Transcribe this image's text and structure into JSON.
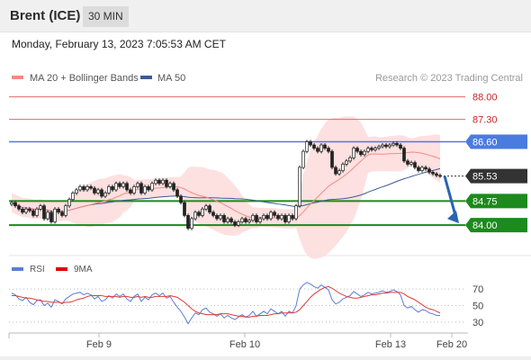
{
  "header": {
    "instrument": "Brent (ICE)",
    "interval": "30 MIN"
  },
  "datetime": "Monday, February 13, 2023 7:05:53 AM CET",
  "legend": {
    "items": [
      {
        "label": "MA 20 + Bollinger Bands",
        "color": "#f28b82"
      },
      {
        "label": "MA 50",
        "color": "#3d5a99"
      }
    ],
    "credit": "Research © 2023 Trading Central"
  },
  "rsi_legend": {
    "items": [
      {
        "label": "RSI",
        "color": "#5b7fd6"
      },
      {
        "label": "9MA",
        "color": "#e00000"
      }
    ]
  },
  "colors": {
    "up_candle": "#ffffff",
    "down_candle": "#222222",
    "band_fill": "#fde0e0",
    "ma20": "#f28b82",
    "ma50": "#3d5a99",
    "resistance": "#e26a6a",
    "pivot": "#4a7be0",
    "support": "#1c8a1c",
    "last_price": "#333333",
    "arrow": "#2a63b4"
  },
  "chart_data": [
    {
      "type": "candlestick",
      "title": "Brent (ICE) 30 MIN",
      "ylim": [
        83.3,
        88.3
      ],
      "x_ticks": [
        "Feb 9",
        "Feb 10",
        "Feb 13",
        "Feb 20"
      ],
      "price_levels": [
        {
          "value": 88.0,
          "label": "88.00",
          "kind": "resistance"
        },
        {
          "value": 87.3,
          "label": "87.30",
          "kind": "resistance"
        },
        {
          "value": 86.6,
          "label": "86.60",
          "kind": "pivot"
        },
        {
          "value": 85.53,
          "label": "85.53",
          "kind": "last"
        },
        {
          "value": 84.75,
          "label": "84.75",
          "kind": "support"
        },
        {
          "value": 84.0,
          "label": "84.00",
          "kind": "support"
        }
      ],
      "forecast": {
        "from": 85.53,
        "to": 84.0,
        "direction": "down"
      },
      "closes": [
        84.7,
        84.6,
        84.5,
        84.4,
        84.5,
        84.45,
        84.3,
        84.5,
        84.6,
        84.2,
        84.4,
        84.1,
        84.5,
        84.4,
        84.3,
        84.6,
        84.8,
        85.0,
        85.1,
        85.2,
        85.1,
        85.2,
        85.15,
        85.0,
        85.1,
        84.9,
        85.0,
        85.2,
        85.1,
        85.3,
        85.2,
        85.3,
        85.1,
        85.0,
        85.2,
        85.3,
        85.0,
        85.2,
        85.1,
        85.3,
        85.4,
        85.3,
        85.4,
        85.2,
        85.3,
        85.1,
        84.9,
        84.7,
        84.3,
        83.9,
        84.2,
        84.4,
        84.3,
        84.5,
        84.6,
        84.4,
        84.3,
        84.2,
        84.3,
        84.1,
        84.2,
        84.1,
        84.0,
        84.1,
        84.2,
        84.1,
        84.15,
        84.3,
        84.1,
        84.2,
        84.3,
        84.2,
        84.4,
        84.3,
        84.2,
        84.3,
        84.1,
        84.3,
        84.2,
        84.6,
        85.8,
        86.3,
        86.6,
        86.5,
        86.4,
        86.3,
        86.5,
        86.4,
        86.3,
        85.8,
        85.6,
        85.7,
        85.9,
        86.0,
        86.1,
        86.4,
        86.3,
        86.2,
        86.3,
        86.4,
        86.35,
        86.4,
        86.45,
        86.5,
        86.45,
        86.5,
        86.55,
        86.5,
        86.4,
        86.0,
        85.9,
        85.95,
        85.8,
        85.7,
        85.8,
        85.75,
        85.65,
        85.6,
        85.55,
        85.53
      ]
    },
    {
      "type": "line",
      "title": "RSI",
      "ylim": [
        20,
        80
      ],
      "y_ticks": [
        30,
        50,
        70
      ],
      "series": [
        {
          "name": "RSI",
          "values": [
            65,
            63,
            58,
            56,
            60,
            54,
            51,
            56,
            57,
            50,
            53,
            48,
            57,
            55,
            52,
            58,
            61,
            64,
            65,
            66,
            63,
            65,
            63,
            58,
            61,
            55,
            57,
            62,
            59,
            64,
            61,
            64,
            58,
            55,
            61,
            64,
            55,
            60,
            57,
            63,
            65,
            62,
            65,
            59,
            61,
            54,
            48,
            43,
            36,
            28,
            35,
            41,
            39,
            45,
            47,
            42,
            40,
            37,
            40,
            35,
            38,
            35,
            33,
            36,
            39,
            36,
            38,
            43,
            37,
            40,
            43,
            40,
            46,
            43,
            40,
            43,
            37,
            43,
            41,
            50,
            70,
            75,
            78,
            76,
            73,
            71,
            75,
            72,
            69,
            57,
            52,
            54,
            58,
            60,
            62,
            67,
            64,
            61,
            63,
            66,
            64,
            65,
            66,
            68,
            66,
            67,
            69,
            67,
            63,
            50,
            47,
            49,
            45,
            42,
            45,
            44,
            41,
            40,
            38,
            38
          ]
        },
        {
          "name": "9MA",
          "values": [
            62,
            62,
            61,
            60,
            59,
            59,
            58,
            57,
            56,
            55,
            55,
            54,
            54,
            54,
            53,
            54,
            54,
            55,
            57,
            58,
            59,
            61,
            62,
            62,
            62,
            62,
            61,
            61,
            61,
            61,
            60,
            61,
            61,
            60,
            60,
            61,
            60,
            61,
            60,
            60,
            61,
            61,
            61,
            61,
            62,
            61,
            60,
            57,
            54,
            50,
            46,
            43,
            41,
            40,
            39,
            39,
            39,
            39,
            40,
            40,
            40,
            39,
            38,
            37,
            37,
            36,
            36,
            37,
            37,
            38,
            38,
            38,
            39,
            40,
            40,
            41,
            41,
            41,
            41,
            42,
            45,
            50,
            55,
            60,
            64,
            67,
            70,
            72,
            73,
            71,
            68,
            65,
            63,
            61,
            60,
            59,
            59,
            60,
            61,
            62,
            63,
            63,
            64,
            65,
            65,
            66,
            66,
            66,
            66,
            64,
            61,
            59,
            57,
            54,
            51,
            48,
            46,
            45,
            43,
            41
          ]
        }
      ]
    }
  ]
}
